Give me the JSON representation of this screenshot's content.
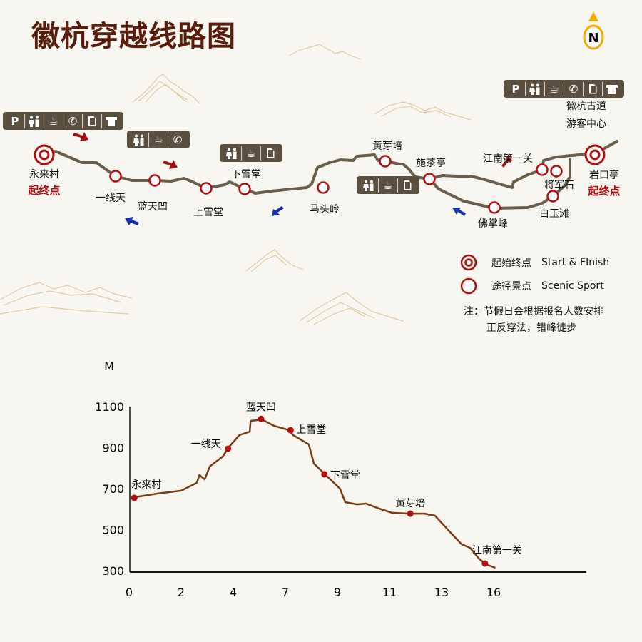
{
  "title": "徽杭穿越线路图",
  "compass": {
    "label": "N",
    "color": "#f5a800"
  },
  "colors": {
    "route": "#6b5e4a",
    "marker": "#b30d0d",
    "facility_bg": "#5b5040",
    "forward_arrow": "#a50f0f",
    "return_arrow": "#1530a8",
    "profile": "#7a3a12",
    "title": "#5a1d0c"
  },
  "map": {
    "start_points": [
      {
        "name": "永来村",
        "tag": "起终点"
      },
      {
        "name": "岩口亭",
        "tag": "起终点"
      }
    ],
    "scenic_spots": [
      "一线天",
      "蓝天凹",
      "上雪堂",
      "下雪堂",
      "马头岭",
      "黄芽培",
      "施茶亭",
      "佛掌峰",
      "江南第一关",
      "将军石",
      "白玉滩"
    ],
    "visitor_center": [
      "徽杭古道",
      "游客中心"
    ],
    "facilities": [
      {
        "icons": [
          "parking",
          "restroom",
          "cafe",
          "phone",
          "document",
          "shirt"
        ]
      },
      {
        "icons": [
          "restroom",
          "cafe",
          "phone"
        ]
      },
      {
        "icons": [
          "restroom",
          "cafe",
          "document"
        ]
      },
      {
        "icons": [
          "restroom",
          "cafe",
          "document"
        ]
      },
      {
        "icons": [
          "parking",
          "restroom",
          "cafe",
          "phone",
          "document",
          "shirt"
        ]
      }
    ],
    "parking_label": "P"
  },
  "legend": {
    "start_finish": {
      "zh": "起始终点",
      "en": "Start & FInish"
    },
    "scenic": {
      "zh": "途径景点",
      "en": "Scenic Sport"
    },
    "note_line1": "注：节假日会根据报名人数安排",
    "note_line2": "正反穿法，错峰徒步"
  },
  "chart_data": {
    "type": "line",
    "ylabel": "M",
    "xlabel": "",
    "ylim": [
      300,
      1100
    ],
    "yticks": [
      300,
      500,
      700,
      900,
      1100
    ],
    "xticks": [
      0,
      2,
      4,
      7,
      9,
      11,
      13,
      16
    ],
    "grid": false,
    "profile": [
      [
        0.2,
        658
      ],
      [
        1.1,
        676
      ],
      [
        2.0,
        690
      ],
      [
        2.6,
        728
      ],
      [
        2.7,
        766
      ],
      [
        2.9,
        745
      ],
      [
        3.1,
        808
      ],
      [
        3.6,
        857
      ],
      [
        3.8,
        898
      ],
      [
        4.35,
        961
      ],
      [
        4.95,
        978
      ],
      [
        5.0,
        1030
      ],
      [
        5.65,
        1037
      ],
      [
        6.35,
        1006
      ],
      [
        7.15,
        985
      ],
      [
        7.3,
        961
      ],
      [
        7.9,
        916
      ],
      [
        8.1,
        822
      ],
      [
        8.55,
        766
      ],
      [
        9.1,
        700
      ],
      [
        9.3,
        634
      ],
      [
        9.75,
        623
      ],
      [
        10.1,
        627
      ],
      [
        10.6,
        603
      ],
      [
        11.1,
        582
      ],
      [
        11.75,
        578
      ],
      [
        12.35,
        578
      ],
      [
        12.75,
        568
      ],
      [
        13.65,
        474
      ],
      [
        14.15,
        429
      ],
      [
        14.65,
        411
      ],
      [
        15.15,
        359
      ],
      [
        15.55,
        331
      ],
      [
        16.1,
        314
      ]
    ],
    "points": [
      {
        "name": "永来村",
        "x": 0.2,
        "y": 655
      },
      {
        "name": "一线天",
        "x": 3.8,
        "y": 895
      },
      {
        "name": "蓝天凹",
        "x": 5.6,
        "y": 1040
      },
      {
        "name": "上雪堂",
        "x": 7.2,
        "y": 985
      },
      {
        "name": "下雪堂",
        "x": 8.5,
        "y": 770
      },
      {
        "name": "黄芽培",
        "x": 11.8,
        "y": 578
      },
      {
        "name": "江南第一关",
        "x": 15.5,
        "y": 335
      }
    ]
  }
}
